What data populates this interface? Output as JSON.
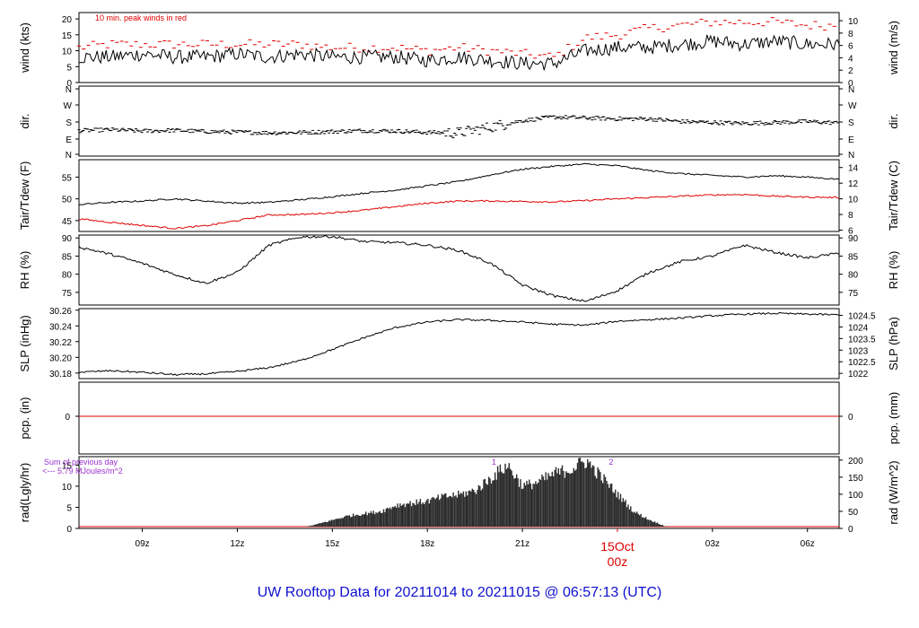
{
  "footer": {
    "title_prefix": "UW Rooftop Data for",
    "start": "20211014",
    "to": "to",
    "end": "20211015 @ 06:57:13",
    "tz": "(UTC)"
  },
  "colors": {
    "line": "#000000",
    "red": "#e00000",
    "purple": "#9b30d0",
    "blue": "#1010d0",
    "bar": "#2b2b2b"
  },
  "chart_data": [
    {
      "type": "line",
      "panel": "wind",
      "left_label": "wind (kts)",
      "right_label": "wind (m/s)",
      "annotation": "10 min. peak winds in red",
      "left_ticks": [
        0,
        5,
        10,
        15,
        20
      ],
      "right_ticks": [
        "0",
        "2",
        "4",
        "6",
        "8",
        "10"
      ],
      "ylim": [
        0,
        22
      ],
      "x_hours_from_7z": [
        0,
        1,
        2,
        3,
        4,
        5,
        6,
        7,
        8,
        9,
        10,
        11,
        12,
        13,
        14,
        15,
        16,
        17,
        18,
        19,
        20,
        21,
        22,
        23,
        24
      ],
      "series": [
        {
          "values": [
            8,
            8,
            9,
            8,
            8,
            9,
            8,
            9,
            8,
            8,
            8,
            7,
            8,
            7,
            6,
            6,
            10,
            11,
            11,
            12,
            13,
            12,
            13,
            12,
            12
          ]
        },
        {
          "values": [
            11,
            12,
            12,
            12,
            12,
            12,
            12,
            12,
            11,
            11,
            11,
            10,
            11,
            10,
            9,
            8,
            14,
            15,
            17,
            18,
            19,
            19,
            19,
            18,
            18
          ]
        }
      ]
    },
    {
      "type": "scatter",
      "panel": "direction",
      "left_label": "dir.",
      "right_label": "dir.",
      "left_ticks": [
        "N",
        "E",
        "S",
        "W",
        "N"
      ],
      "right_ticks": [
        "N",
        "E",
        "S",
        "W",
        "N"
      ],
      "ylim": [
        0,
        360
      ],
      "x_hours_from_7z": [
        0,
        1,
        2,
        3,
        4,
        5,
        6,
        7,
        8,
        9,
        10,
        11,
        12,
        13,
        14,
        15,
        16,
        17,
        18,
        19,
        20,
        21,
        22,
        23,
        24
      ],
      "values": [
        130,
        135,
        128,
        132,
        125,
        122,
        118,
        120,
        125,
        130,
        128,
        120,
        118,
        150,
        185,
        205,
        200,
        195,
        195,
        180,
        175,
        170,
        175,
        180,
        172
      ]
    },
    {
      "type": "line",
      "panel": "temperature",
      "left_label": "Tair/Tdew (F)",
      "right_label": "Tair/Tdew (C)",
      "left_ticks": [
        45,
        50,
        55
      ],
      "right_ticks": [
        "6",
        "8",
        "10",
        "12",
        "14"
      ],
      "ylim": [
        42.5,
        59
      ],
      "x_hours_from_7z": [
        0,
        1,
        2,
        3,
        4,
        5,
        6,
        7,
        8,
        9,
        10,
        11,
        12,
        13,
        14,
        15,
        16,
        17,
        18,
        19,
        20,
        21,
        22,
        23,
        24
      ],
      "series": [
        {
          "values": [
            48.7,
            49.2,
            49.5,
            50.0,
            49.5,
            49.0,
            49.2,
            49.8,
            50.5,
            51.3,
            52.0,
            53.0,
            54.0,
            55.5,
            56.8,
            57.5,
            58.0,
            57.6,
            56.5,
            55.8,
            55.4,
            55.0,
            55.3,
            55.0,
            54.5
          ]
        },
        {
          "values": [
            45.4,
            44.6,
            43.9,
            43.2,
            43.8,
            45.0,
            46.3,
            46.4,
            46.8,
            47.4,
            48.2,
            49.0,
            49.5,
            49.5,
            49.4,
            49.3,
            49.6,
            50.0,
            50.3,
            50.6,
            50.9,
            51.0,
            50.6,
            50.4,
            50.3
          ]
        }
      ]
    },
    {
      "type": "line",
      "panel": "humidity",
      "left_label": "RH (%)",
      "right_label": "RH (%)",
      "left_ticks": [
        75,
        80,
        85,
        90
      ],
      "right_ticks": [
        "75",
        "80",
        "85",
        "90"
      ],
      "ylim": [
        71.5,
        90.8
      ],
      "x_hours_from_7z": [
        0,
        1,
        2,
        3,
        4,
        5,
        6,
        7,
        8,
        9,
        10,
        11,
        12,
        13,
        14,
        15,
        16,
        17,
        18,
        19,
        20,
        21,
        22,
        23,
        24
      ],
      "values": [
        87.5,
        85.5,
        83,
        80,
        77.5,
        80.5,
        88,
        90.3,
        90.4,
        89,
        88.7,
        88,
        86.5,
        83,
        77,
        74,
        72.5,
        75.5,
        80.5,
        83.5,
        85,
        88,
        86,
        84.5,
        85.8
      ]
    },
    {
      "type": "line",
      "panel": "pressure",
      "left_label": "SLP (inHg)",
      "right_label": "SLP (hPa)",
      "left_ticks": [
        "30.18",
        "30.20",
        "30.22",
        "30.24",
        "30.26"
      ],
      "right_ticks": [
        "1022",
        "1022.5",
        "1023",
        "1023.5",
        "1024",
        "1024.5"
      ],
      "ylim": [
        30.173,
        30.262
      ],
      "x_hours_from_7z": [
        0,
        1,
        2,
        3,
        4,
        5,
        6,
        7,
        8,
        9,
        10,
        11,
        12,
        13,
        14,
        15,
        16,
        17,
        18,
        19,
        20,
        21,
        22,
        23,
        24
      ],
      "values": [
        30.181,
        30.183,
        30.181,
        30.178,
        30.179,
        30.182,
        30.187,
        30.196,
        30.21,
        30.225,
        30.238,
        30.245,
        30.248,
        30.247,
        30.245,
        30.242,
        30.241,
        30.246,
        30.248,
        30.25,
        30.253,
        30.255,
        30.256,
        30.255,
        30.254
      ]
    },
    {
      "type": "line",
      "panel": "precipitation",
      "left_label": "pcp. (in)",
      "right_label": "pcp. (mm)",
      "left_ticks": [
        "0"
      ],
      "right_ticks": [
        "0"
      ],
      "values": [
        0,
        0
      ]
    },
    {
      "type": "bar",
      "panel": "radiation",
      "left_label": "rad(Lgly/hr)",
      "right_label": "rad (W/m^2)",
      "left_ticks": [
        0,
        5,
        10,
        15
      ],
      "right_ticks": [
        "0",
        "50",
        "100",
        "150",
        "200"
      ],
      "ylim": [
        0,
        17
      ],
      "annotation_lines": [
        "Sum of previous day",
        "<--- 5.79 MJoules/m^2"
      ],
      "annotation_numbers": [
        "1",
        "2"
      ],
      "x_hours_from_7z": [
        7,
        7.5,
        8,
        8.5,
        9,
        9.5,
        10,
        10.5,
        11,
        11.5,
        12,
        12.5,
        13,
        13.5,
        14,
        14.5,
        15,
        15.5,
        16,
        16.5,
        17,
        17.5,
        18,
        18.5,
        19
      ],
      "values": [
        0.1,
        1,
        2,
        3,
        3.5,
        4,
        5.5,
        6,
        6.5,
        7.5,
        8,
        9,
        12,
        15,
        10,
        11,
        13,
        14,
        16,
        12,
        8,
        4,
        2,
        0.5,
        0
      ]
    }
  ],
  "x_axis": {
    "tick_labels": [
      "09z",
      "12z",
      "15z",
      "18z",
      "21z",
      "03z",
      "06z"
    ],
    "tick_hours": [
      2,
      5,
      8,
      11,
      14,
      20,
      23
    ],
    "date_label": "15Oct",
    "date_sub": "00z",
    "date_hour": 17
  }
}
